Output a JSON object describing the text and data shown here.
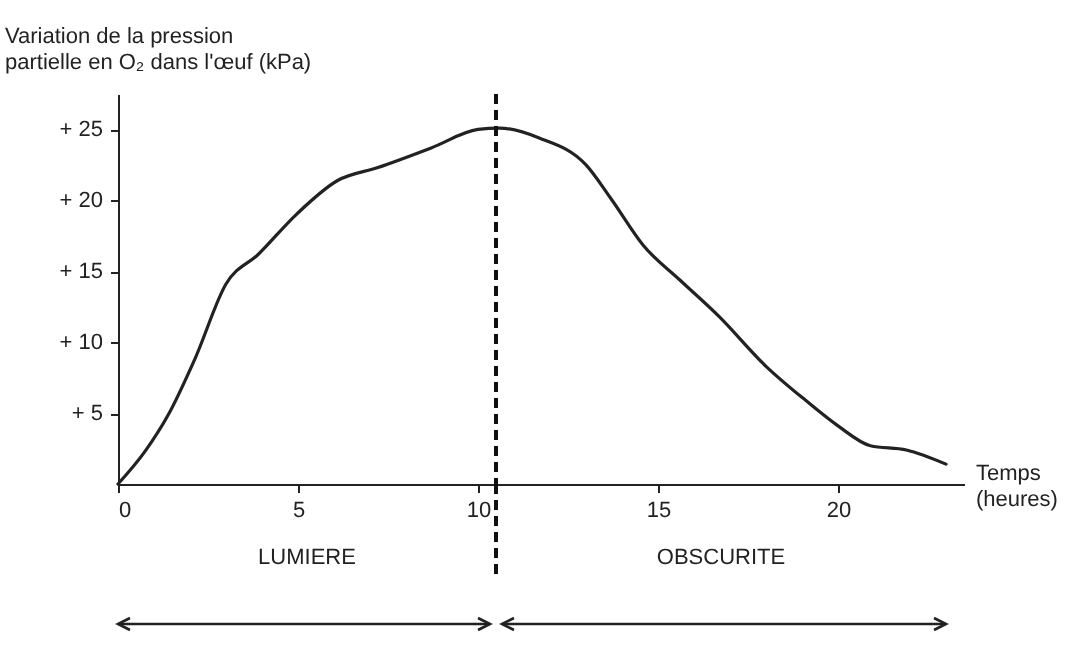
{
  "chart_data": {
    "type": "line",
    "ylabel": "Variation de la pression partielle en O₂ dans l'œuf (kPa)",
    "xlabel": "Temps (heures)",
    "x": [
      0,
      0.75,
      1.4,
      2.15,
      3.0,
      3.9,
      4.95,
      6.1,
      7.2,
      8.7,
      10.0,
      10.6,
      11.7,
      13.0,
      13.7,
      14.6,
      15.6,
      16.7,
      18.0,
      19.1,
      20.0,
      20.9,
      21.9,
      23.0
    ],
    "series": [
      {
        "color": "#222222",
        "values": [
          0,
          2.3,
          4.9,
          8.9,
          14.1,
          16.2,
          19.0,
          21.4,
          22.3,
          23.7,
          25.0,
          25.1,
          24.4,
          22.5,
          20.1,
          16.8,
          14.4,
          11.8,
          8.3,
          5.9,
          4.1,
          2.7,
          2.4,
          1.4
        ]
      }
    ],
    "xlim": [
      0,
      23.5
    ],
    "ylim": [
      0,
      27.5
    ],
    "xticks": [
      0,
      5,
      10,
      15,
      20
    ],
    "yticks": [
      {
        "value": 5,
        "label": "+ 5"
      },
      {
        "value": 10,
        "label": "+ 10"
      },
      {
        "value": 15,
        "label": "+ 15"
      },
      {
        "value": 20,
        "label": "+ 20"
      },
      {
        "value": 25,
        "label": "+ 25"
      }
    ],
    "ref_lines": [
      {
        "axis": "x",
        "value": 10.5,
        "color": "#111111",
        "line_style": "dashed"
      }
    ],
    "annotations": [
      "LUMIERE",
      "OBSCURITE"
    ],
    "grid": false,
    "marker": "none",
    "line_style": "solid"
  }
}
